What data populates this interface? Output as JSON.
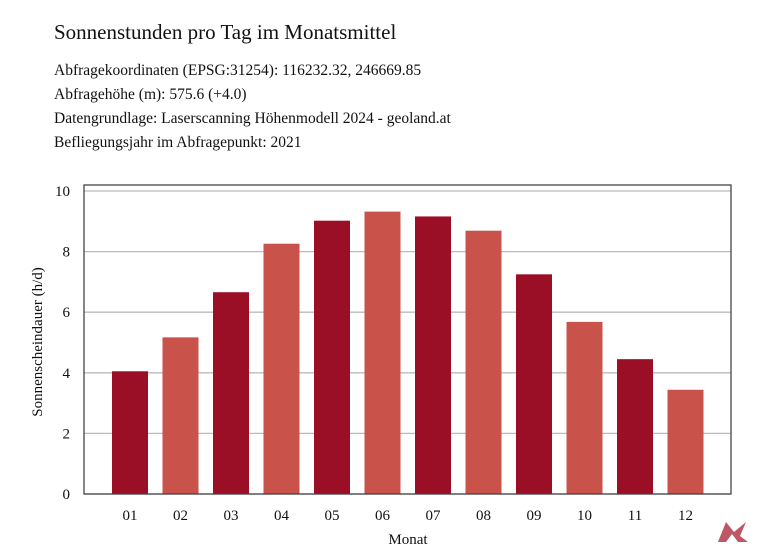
{
  "chart_data": {
    "type": "bar",
    "title": "Sonnenstunden pro Tag im Monatsmittel",
    "info": [
      "Abfragekoordinaten (EPSG:31254): 116232.32, 246669.85",
      "Abfragehöhe (m): 575.6 (+4.0)",
      "Datengrundlage: Laserscanning Höhenmodell 2024 - geoland.at",
      "Befliegungsjahr im Abfragepunkt: 2021"
    ],
    "xlabel": "Monat",
    "ylabel": "Sonnenscheindauer (h/d)",
    "categories": [
      "01",
      "02",
      "03",
      "04",
      "05",
      "06",
      "07",
      "08",
      "09",
      "10",
      "11",
      "12"
    ],
    "values": [
      4.05,
      5.17,
      6.66,
      8.26,
      9.02,
      9.32,
      9.16,
      8.69,
      7.25,
      5.68,
      4.45,
      3.44
    ],
    "ylim": [
      0,
      10
    ],
    "yticks": [
      0,
      2,
      4,
      6,
      8,
      10
    ],
    "grid": true,
    "colors": [
      "#9a0e26",
      "#c9524b"
    ]
  }
}
